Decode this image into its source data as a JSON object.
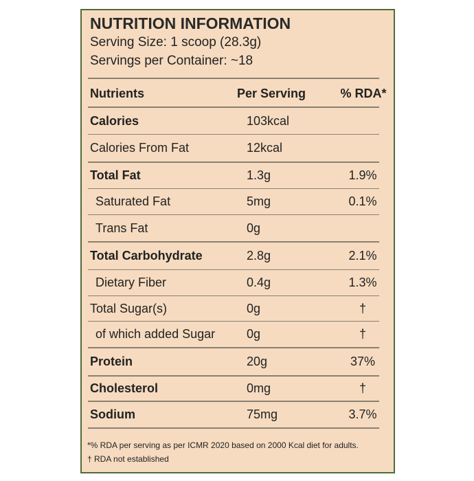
{
  "header": {
    "title": "NUTRITION INFORMATION",
    "serving_size": "Serving Size: 1 scoop (28.3g)",
    "servings_per_container": "Servings per Container: ~18"
  },
  "table": {
    "columns": [
      "Nutrients",
      "Per Serving",
      "% RDA*"
    ],
    "rows": [
      {
        "cells": [
          "Calories",
          "103kcal"
        ],
        "bold": true
      },
      {
        "cells": [
          "Calories From Fat",
          "12kcal"
        ]
      },
      {
        "cells": [
          "Total Fat",
          "1.3g",
          "1.9%"
        ],
        "bold": true
      },
      {
        "cells": [
          "Saturated Fat",
          "5mg",
          "0.1%"
        ],
        "indent": true
      },
      {
        "cells": [
          "Trans Fat",
          "0g"
        ],
        "indent": true
      },
      {
        "cells": [
          "Total Carbohydrate",
          "2.8g",
          "2.1%"
        ],
        "bold": true
      },
      {
        "cells": [
          "Dietary Fiber",
          "0.4g",
          "1.3%"
        ],
        "indent": true
      },
      {
        "cells": [
          "Total Sugar(s)",
          "0g",
          "†"
        ]
      },
      {
        "cells": [
          "of which added Sugar",
          "0g",
          "†"
        ],
        "indent": true
      },
      {
        "cells": [
          "Protein",
          "20g",
          "37%"
        ],
        "bold": true
      },
      {
        "cells": [
          "Cholesterol",
          "0mg",
          "†"
        ],
        "bold": true
      },
      {
        "cells": [
          "Sodium",
          "75mg",
          "3.7%"
        ],
        "bold": true
      }
    ]
  },
  "footnotes": [
    "*% RDA per serving as per ICMR 2020 based on 2000 Kcal diet for adults.",
    "† RDA not established"
  ]
}
